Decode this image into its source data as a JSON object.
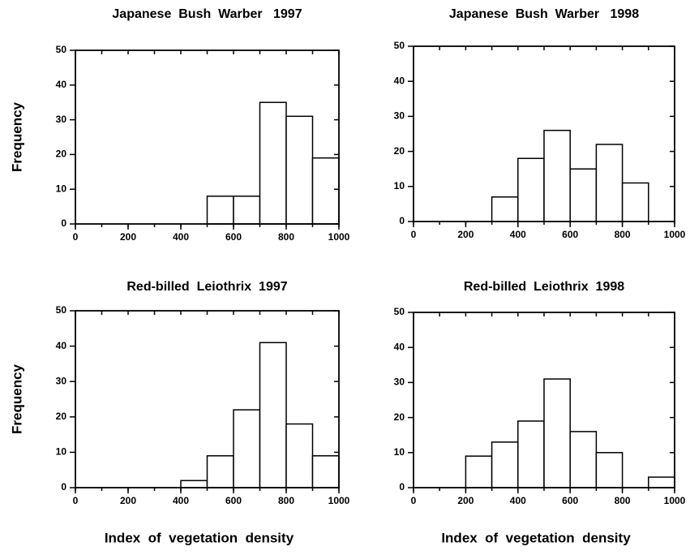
{
  "chart_data": [
    {
      "type": "histogram",
      "title": "Japanese  Bush  Warber   1997",
      "ylabel": "Frequency",
      "bins": [
        0,
        100,
        200,
        300,
        400,
        500,
        600,
        700,
        800,
        900,
        1000
      ],
      "values": [
        0,
        0,
        0,
        0,
        0,
        8,
        8,
        35,
        31,
        19
      ],
      "xlim": [
        0,
        1000
      ],
      "xticks": [
        0,
        200,
        400,
        600,
        800,
        1000
      ],
      "ylim": [
        0,
        50
      ],
      "yticks": [
        0,
        10,
        20,
        30,
        40,
        50
      ],
      "color": "#ffffff",
      "grid": false
    },
    {
      "type": "histogram",
      "title": "Japanese  Bush  Warber   1998",
      "bins": [
        0,
        100,
        200,
        300,
        400,
        500,
        600,
        700,
        800,
        900,
        1000
      ],
      "values": [
        0,
        0,
        0,
        7,
        18,
        26,
        15,
        22,
        11,
        0
      ],
      "xlim": [
        0,
        1000
      ],
      "xticks": [
        0,
        200,
        400,
        600,
        800,
        1000
      ],
      "ylim": [
        0,
        50
      ],
      "yticks": [
        0,
        10,
        20,
        30,
        40,
        50
      ],
      "color": "#ffffff",
      "grid": false
    },
    {
      "type": "histogram",
      "title": "Red-billed  Leiothrix  1997",
      "ylabel": "Frequency",
      "xlabel": "Index  of  vegetation  density",
      "bins": [
        0,
        100,
        200,
        300,
        400,
        500,
        600,
        700,
        800,
        900,
        1000
      ],
      "values": [
        0,
        0,
        0,
        0,
        2,
        9,
        22,
        41,
        18,
        9
      ],
      "xlim": [
        0,
        1000
      ],
      "xticks": [
        0,
        200,
        400,
        600,
        800,
        1000
      ],
      "ylim": [
        0,
        50
      ],
      "yticks": [
        0,
        10,
        20,
        30,
        40,
        50
      ],
      "color": "#ffffff",
      "grid": false
    },
    {
      "type": "histogram",
      "title": "Red-billed  Leiothrix  1998",
      "xlabel": "Index  of  vegetation  density",
      "bins": [
        0,
        100,
        200,
        300,
        400,
        500,
        600,
        700,
        800,
        900,
        1000
      ],
      "values": [
        0,
        0,
        9,
        13,
        19,
        31,
        16,
        10,
        0,
        3
      ],
      "xlim": [
        0,
        1000
      ],
      "xticks": [
        0,
        200,
        400,
        600,
        800,
        1000
      ],
      "ylim": [
        0,
        50
      ],
      "yticks": [
        0,
        10,
        20,
        30,
        40,
        50
      ],
      "color": "#ffffff",
      "grid": false
    }
  ]
}
